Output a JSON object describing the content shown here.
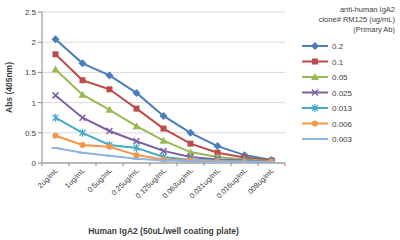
{
  "chart_data": {
    "type": "line",
    "x_label": "Human IgA2 (50uL/well coating plate)",
    "y_label": "Abs (405nm)",
    "legend_title": [
      "anti-human IgA2",
      "clone# RM125 (ug/mL)",
      "(Primary Ab)"
    ],
    "categories": [
      "2ug/mL",
      "1ug/mL",
      "0.5ug/mL",
      "0.25ug/mL",
      "0.125ug/mL",
      "0.063ug/mL",
      "0.031ug/mL",
      "0.016ug/mL",
      ".008ug/mL"
    ],
    "series": [
      {
        "name": "0.2",
        "color": "#4a7ebb",
        "marker": "diamond",
        "values": [
          2.05,
          1.65,
          1.45,
          1.16,
          0.78,
          0.5,
          0.28,
          0.13,
          0.05
        ]
      },
      {
        "name": "0.1",
        "color": "#be4b48",
        "marker": "square",
        "values": [
          1.8,
          1.37,
          1.22,
          0.9,
          0.57,
          0.32,
          0.17,
          0.09,
          0.04
        ]
      },
      {
        "name": "0.05",
        "color": "#98b954",
        "marker": "triangle",
        "values": [
          1.55,
          1.13,
          0.88,
          0.61,
          0.37,
          0.18,
          0.1,
          0.06,
          0.03
        ]
      },
      {
        "name": "0.025",
        "color": "#7d60a0",
        "marker": "x",
        "values": [
          1.12,
          0.75,
          0.53,
          0.36,
          0.2,
          0.1,
          0.06,
          0.04,
          0.02
        ]
      },
      {
        "name": "0.013",
        "color": "#46aac5",
        "marker": "star",
        "values": [
          0.75,
          0.5,
          0.3,
          0.25,
          0.1,
          0.05,
          0.04,
          0.03,
          0.02
        ]
      },
      {
        "name": "0.006",
        "color": "#f79646",
        "marker": "circle",
        "values": [
          0.45,
          0.3,
          0.27,
          0.13,
          0.06,
          0.04,
          0.03,
          0.02,
          0.02
        ]
      },
      {
        "name": "0.003",
        "color": "#8eb4e3",
        "marker": "plus",
        "values": [
          0.25,
          0.17,
          0.12,
          0.07,
          0.04,
          0.03,
          0.02,
          0.02,
          0.01
        ]
      }
    ],
    "ylim": [
      0,
      2.5
    ],
    "yticks": [
      0,
      0.5,
      1,
      1.5,
      2,
      2.5
    ],
    "grid": true,
    "legend": "right"
  }
}
